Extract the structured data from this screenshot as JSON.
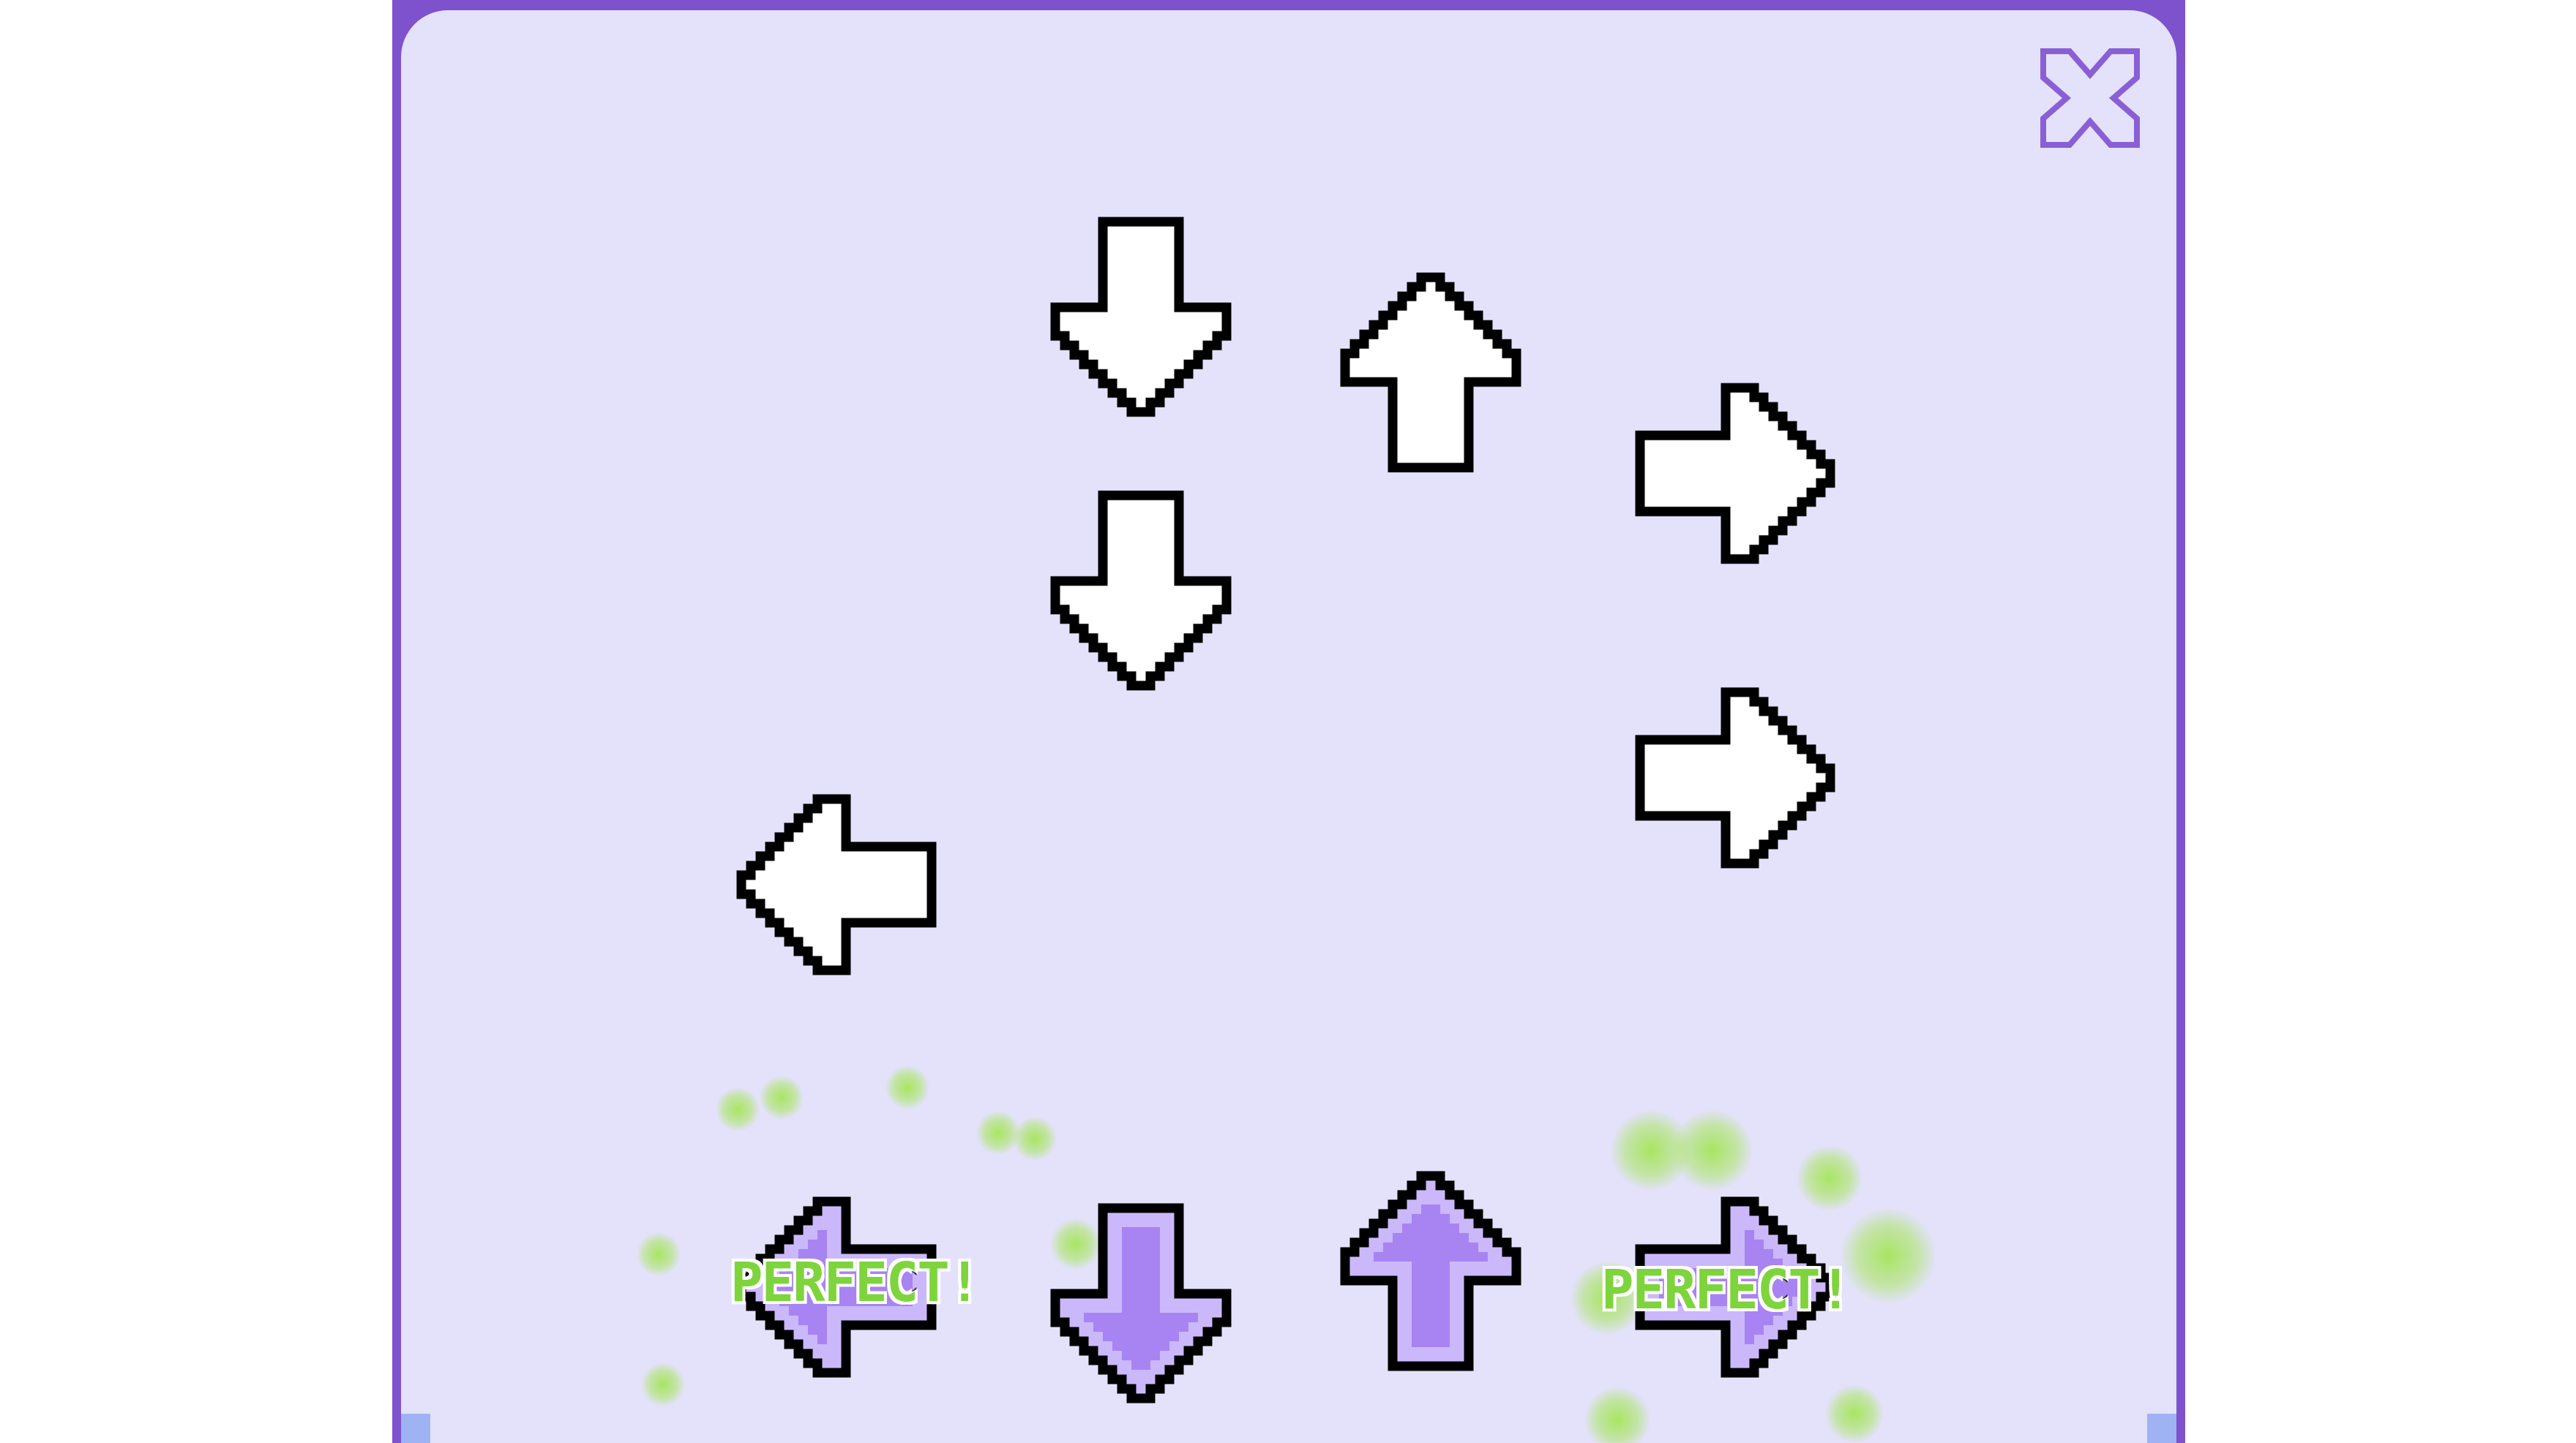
{
  "game": {
    "close_icon": "close-x-icon",
    "colors": {
      "frame": "#7e51cd",
      "panel": "#e4e2fb",
      "note_fill": "#ffffff",
      "outline": "#000000",
      "receptor_fill": "#a784f2",
      "receptor_light": "#cbb8fb",
      "perfect_text": "#7ed43c",
      "glow": "#9ee646"
    },
    "falling_notes": [
      {
        "direction": "down",
        "icon": "arrow-down-icon"
      },
      {
        "direction": "up",
        "icon": "arrow-up-icon"
      },
      {
        "direction": "right",
        "icon": "arrow-right-icon"
      },
      {
        "direction": "down",
        "icon": "arrow-down-icon"
      },
      {
        "direction": "right",
        "icon": "arrow-right-icon"
      },
      {
        "direction": "left",
        "icon": "arrow-left-icon"
      }
    ],
    "receptors": [
      {
        "direction": "left",
        "icon": "arrow-left-icon"
      },
      {
        "direction": "down",
        "icon": "arrow-down-icon"
      },
      {
        "direction": "up",
        "icon": "arrow-up-icon"
      },
      {
        "direction": "right",
        "icon": "arrow-right-icon"
      }
    ],
    "hit_feedback": [
      {
        "text": "PERFECT!"
      },
      {
        "text": "PERFECT!"
      }
    ]
  }
}
